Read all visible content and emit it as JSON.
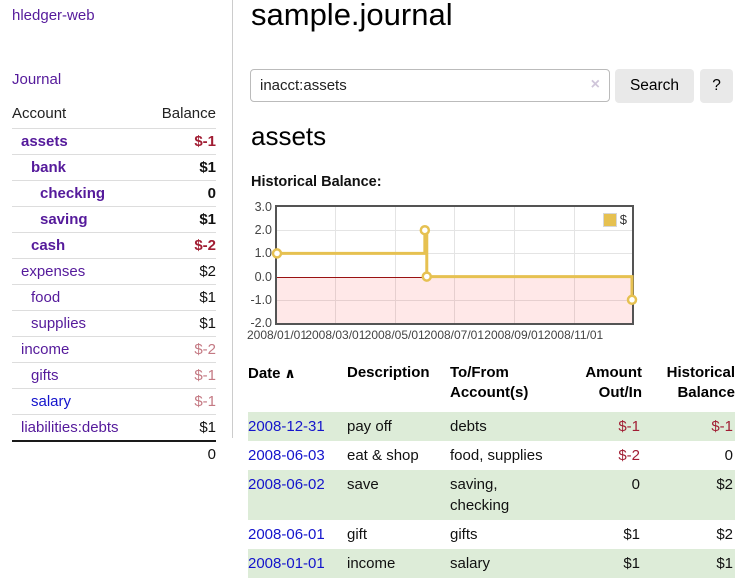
{
  "app": {
    "title": "hledger-web",
    "nav_journal": "Journal"
  },
  "colors": {
    "purple_link": "#551a9b",
    "blue_link": "#1414cc",
    "negative_strong": "#a11d33",
    "negative_soft": "#c47983",
    "row_stripe_green": "#ddecd8",
    "chart_line": "#e6c151",
    "zero_line": "#991111"
  },
  "sidebar": {
    "header": {
      "account": "Account",
      "balance": "Balance"
    },
    "rows": [
      {
        "name": "assets",
        "balance": "$-1",
        "level": 1,
        "bold": true,
        "neg": "strong"
      },
      {
        "name": "bank",
        "balance": "$1",
        "level": 2,
        "bold": true
      },
      {
        "name": "checking",
        "balance": "0",
        "level": 3,
        "bold": true
      },
      {
        "name": "saving",
        "balance": "$1",
        "level": 3,
        "bold": true
      },
      {
        "name": "cash",
        "balance": "$-2",
        "level": 2,
        "bold": true,
        "neg": "strong"
      },
      {
        "name": "expenses",
        "balance": "$2",
        "level": 1
      },
      {
        "name": "food",
        "balance": "$1",
        "level": 2
      },
      {
        "name": "supplies",
        "balance": "$1",
        "level": 2
      },
      {
        "name": "income",
        "balance": "$-2",
        "level": 1,
        "neg": "soft"
      },
      {
        "name": "gifts",
        "balance": "$-1",
        "level": 2,
        "neg": "soft"
      },
      {
        "name": "salary",
        "balance": "$-1",
        "level": 2,
        "neg": "soft",
        "link_color": "blue"
      },
      {
        "name": "liabilities:debts",
        "balance": "$1",
        "level": 1
      }
    ],
    "total": "0"
  },
  "header": {
    "title": "sample.journal"
  },
  "search": {
    "value": "inacct:assets",
    "clear_icon": "×",
    "button": "Search",
    "help_button": "?"
  },
  "account_page": {
    "title": "assets",
    "chart_label": "Historical Balance:"
  },
  "chart_data": {
    "type": "line",
    "step": true,
    "title": "Historical Balance",
    "legend": "$",
    "legend_position": "top-right",
    "grid": true,
    "xlim": [
      "2008-01-01",
      "2008-12-31"
    ],
    "ylim": [
      -2,
      3
    ],
    "y_ticks": [
      "3.0",
      "2.0",
      "1.0",
      "0.0",
      "-1.0",
      "-2.0"
    ],
    "x_ticks": [
      "2008/01/01",
      "2008/03/01",
      "2008/05/01",
      "2008/07/01",
      "2008/09/01",
      "2008/11/01"
    ],
    "series": [
      {
        "name": "$",
        "points": [
          [
            "2008-01-01",
            1
          ],
          [
            "2008-06-01",
            2
          ],
          [
            "2008-06-03",
            0
          ],
          [
            "2008-12-31",
            -1
          ]
        ]
      }
    ]
  },
  "register": {
    "sort_indicator": "∧",
    "headers": [
      {
        "lines": [
          "Date"
        ],
        "sorted": true,
        "align": "left"
      },
      {
        "lines": [
          "Description"
        ],
        "align": "left"
      },
      {
        "lines": [
          "To/From",
          "Account(s)"
        ],
        "align": "left"
      },
      {
        "lines": [
          "Amount",
          "Out/In"
        ],
        "align": "right"
      },
      {
        "lines": [
          "Historical",
          "Balance"
        ],
        "align": "right"
      }
    ],
    "rows": [
      {
        "date": "2008-12-31",
        "description": "pay off",
        "accounts": "debts",
        "amount": "$-1",
        "balance": "$-1"
      },
      {
        "date": "2008-06-03",
        "description": "eat & shop",
        "accounts": "food, supplies",
        "amount": "$-2",
        "balance": "0"
      },
      {
        "date": "2008-06-02",
        "description": "save",
        "accounts": "saving, checking",
        "amount": "0",
        "balance": "$2"
      },
      {
        "date": "2008-06-01",
        "description": "gift",
        "accounts": "gifts",
        "amount": "$1",
        "balance": "$2"
      },
      {
        "date": "2008-01-01",
        "description": "income",
        "accounts": "salary",
        "amount": "$1",
        "balance": "$1"
      }
    ]
  }
}
